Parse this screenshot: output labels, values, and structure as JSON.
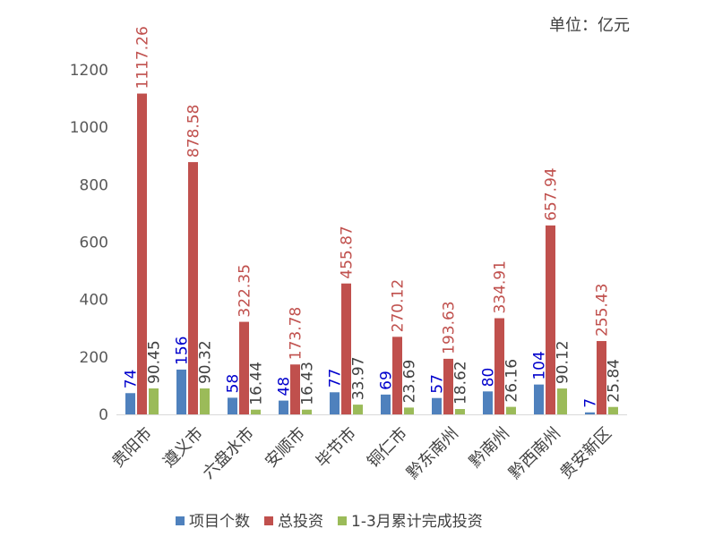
{
  "chart_data": {
    "type": "bar",
    "unit_label": "单位：亿元",
    "categories": [
      "贵阳市",
      "遵义市",
      "六盘水市",
      "安顺市",
      "毕节市",
      "铜仁市",
      "黔东南州",
      "黔南州",
      "黔西南州",
      "贵安新区"
    ],
    "series": [
      {
        "name": "项目个数",
        "color": "#4f81bd",
        "label_color": "#0000cc",
        "values": [
          74,
          156,
          58,
          48,
          77,
          69,
          57,
          80,
          104,
          7
        ],
        "labels": [
          "74",
          "156",
          "58",
          "48",
          "77",
          "69",
          "57",
          "80",
          "104",
          "7"
        ]
      },
      {
        "name": "总投资",
        "color": "#c0504d",
        "label_color": "#c0504d",
        "values": [
          1117.26,
          878.58,
          322.35,
          173.78,
          455.87,
          270.12,
          193.63,
          334.91,
          657.94,
          255.43
        ],
        "labels": [
          "1117.26",
          "878.58",
          "322.35",
          "173.78",
          "455.87",
          "270.12",
          "193.63",
          "334.91",
          "657.94",
          "255.43"
        ]
      },
      {
        "name": "1-3月累计完成投资",
        "color": "#9bbb59",
        "label_color": "#404040",
        "values": [
          90.45,
          90.32,
          16.44,
          16.43,
          33.97,
          23.69,
          18.62,
          26.16,
          90.12,
          25.84
        ],
        "labels": [
          "90.45",
          "90.32",
          "16.44",
          "16.43",
          "33.97",
          "23.69",
          "18.62",
          "26.16",
          "90.12",
          "25.84"
        ]
      }
    ],
    "y_ticks": [
      "0",
      "200",
      "400",
      "600",
      "800",
      "1000",
      "1200"
    ],
    "ylim": [
      0,
      1200
    ],
    "grid": false,
    "legend_position": "bottom"
  }
}
